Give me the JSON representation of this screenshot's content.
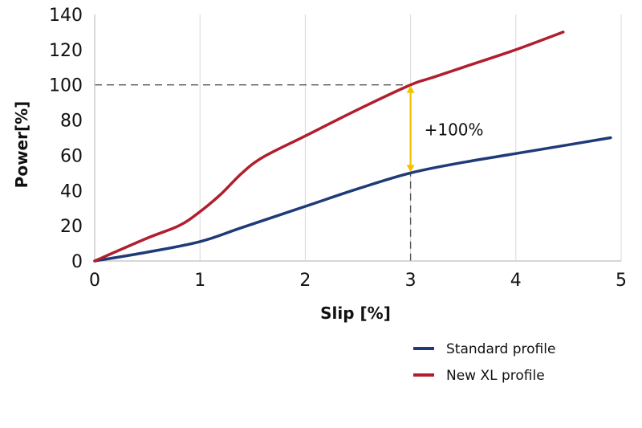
{
  "chart_data": {
    "type": "line",
    "xlabel": "Slip [%]",
    "ylabel": "Power[%]",
    "xlim": [
      0,
      5
    ],
    "ylim": [
      0,
      140
    ],
    "x_ticks": [
      0,
      1,
      2,
      3,
      4,
      5
    ],
    "y_ticks": [
      0,
      20,
      40,
      60,
      80,
      100,
      120,
      140
    ],
    "grid": "vertical",
    "legend_position": "bottom-right",
    "series": [
      {
        "name": "Standard profile",
        "color": "#1f3a78",
        "x": [
          0,
          0.5,
          1.0,
          1.4,
          2.0,
          2.5,
          3.0,
          3.5,
          4.0,
          4.5,
          4.9
        ],
        "y": [
          0,
          5,
          11,
          19,
          31,
          41,
          50,
          56,
          61,
          66,
          70
        ]
      },
      {
        "name": "New XL profile",
        "color": "#b01f2e",
        "x": [
          0,
          0.5,
          0.8,
          1.0,
          1.2,
          1.4,
          1.6,
          2.0,
          2.5,
          3.0,
          3.2,
          3.5,
          4.0,
          4.45
        ],
        "y": [
          0,
          13,
          20,
          28,
          38,
          50,
          59,
          71,
          86,
          100,
          104,
          110,
          120,
          130
        ]
      }
    ],
    "annotations": [
      {
        "text": "+100%",
        "x": 3,
        "from": 50,
        "to": 100,
        "color": "#f2c200"
      }
    ],
    "reference_lines": {
      "x": 3,
      "y": 100
    }
  }
}
